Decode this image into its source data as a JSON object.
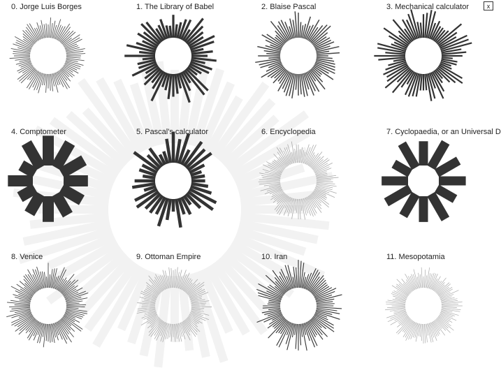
{
  "close_button": {
    "label": "x"
  },
  "ghost_color": "#f2f2f2",
  "items": [
    {
      "title": "0. Jorge Luis Borges",
      "bars": 96,
      "thickness": 0.9,
      "spread": 14,
      "color": "#555555",
      "seed": 3
    },
    {
      "title": "1. The Library of Babel",
      "bars": 56,
      "thickness": 3.2,
      "spread": 30,
      "color": "#333333",
      "seed": 7
    },
    {
      "title": "2. Blaise Pascal",
      "bars": 84,
      "thickness": 1.5,
      "spread": 22,
      "color": "#444444",
      "seed": 11
    },
    {
      "title": "3. Mechanical calculator",
      "bars": 72,
      "thickness": 2.2,
      "spread": 30,
      "color": "#333333",
      "seed": 19
    },
    {
      "title": "4. Comptometer",
      "bars": 12,
      "thickness": 16,
      "spread": 22,
      "color": "#333333",
      "seed": 23
    },
    {
      "title": "5. Pascal's calculator",
      "bars": 40,
      "thickness": 4.5,
      "spread": 30,
      "color": "#333333",
      "seed": 29
    },
    {
      "title": "6. Encyclopedia",
      "bars": 110,
      "thickness": 0.8,
      "spread": 16,
      "color": "#aaaaaa",
      "seed": 31
    },
    {
      "title": "7. Cyclopaedia, or an Universal D",
      "bars": 12,
      "thickness": 13,
      "spread": 20,
      "color": "#333333",
      "seed": 37
    },
    {
      "title": "8. Venice",
      "bars": 110,
      "thickness": 0.9,
      "spread": 20,
      "color": "#444444",
      "seed": 41
    },
    {
      "title": "9. Ottoman Empire",
      "bars": 110,
      "thickness": 0.8,
      "spread": 14,
      "color": "#aaaaaa",
      "seed": 43
    },
    {
      "title": "10. Iran",
      "bars": 100,
      "thickness": 1.1,
      "spread": 24,
      "color": "#333333",
      "seed": 47
    },
    {
      "title": "11. Mesopotamia",
      "bars": 120,
      "thickness": 0.7,
      "spread": 14,
      "color": "#aaaaaa",
      "seed": 53
    }
  ]
}
